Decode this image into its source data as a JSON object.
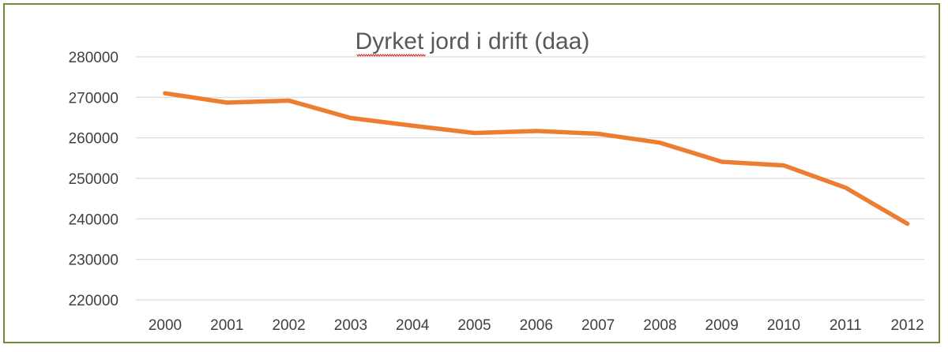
{
  "chart_data": {
    "type": "line",
    "title": "Dyrket jord i drift (daa)",
    "xlabel": "",
    "ylabel": "",
    "categories": [
      "2000",
      "2001",
      "2002",
      "2003",
      "2004",
      "2005",
      "2006",
      "2007",
      "2008",
      "2009",
      "2010",
      "2011",
      "2012"
    ],
    "series": [
      {
        "values": [
          271000,
          268700,
          269200,
          264900,
          263000,
          261200,
          261700,
          261000,
          258800,
          254100,
          253200,
          247700,
          238800
        ],
        "color": "#ed7d31"
      }
    ],
    "ylim": [
      220000,
      280000
    ],
    "yticks": [
      "220000",
      "230000",
      "240000",
      "250000",
      "260000",
      "270000",
      "280000"
    ],
    "grid": true,
    "legend": "none",
    "colors": {
      "border": "#6e8c3a",
      "gridline": "#d9d9d9",
      "title_text": "#595959",
      "tick_text": "#404040",
      "spellcheck_underline": "#d22020"
    }
  }
}
